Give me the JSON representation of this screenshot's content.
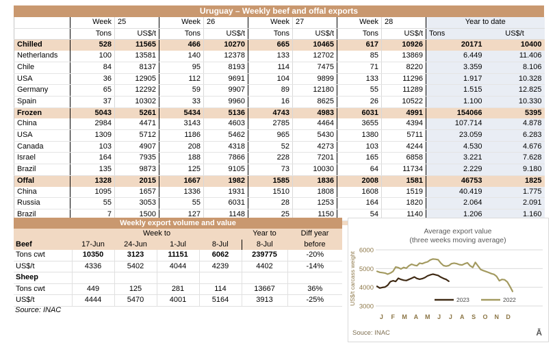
{
  "colors": {
    "header_bg": "#C9986F",
    "section_bg": "#F1D9C3",
    "ytd_bg": "#E9EDF4",
    "line_2023": "#3F2A14",
    "line_2022": "#A39A60"
  },
  "table1": {
    "title": "Uruguay – Weekly beef and offal exports",
    "week_word": "Week",
    "weeks": [
      "25",
      "26",
      "27",
      "28"
    ],
    "ytd_header": "Year to date",
    "tons_label": "Tons",
    "usd_label": "US$/t",
    "sections": [
      {
        "label": "Chilled",
        "values": [
          "528",
          "11565",
          "466",
          "10270",
          "665",
          "10465",
          "617",
          "10926",
          "20171",
          "10400"
        ],
        "rows": [
          {
            "label": "Netherlands",
            "values": [
              "100",
              "13581",
              "140",
              "12378",
              "133",
              "12702",
              "85",
              "13869",
              "6.449",
              "11.406"
            ]
          },
          {
            "label": "Chile",
            "values": [
              "84",
              "8137",
              "95",
              "8193",
              "114",
              "7475",
              "71",
              "8220",
              "3.359",
              "8.106"
            ]
          },
          {
            "label": "USA",
            "values": [
              "36",
              "12905",
              "112",
              "9691",
              "104",
              "9899",
              "133",
              "11296",
              "1.917",
              "10.328"
            ]
          },
          {
            "label": "Germany",
            "values": [
              "65",
              "12292",
              "59",
              "9907",
              "89",
              "12180",
              "55",
              "11289",
              "1.515",
              "12.825"
            ]
          },
          {
            "label": "Spain",
            "values": [
              "37",
              "10302",
              "33",
              "9960",
              "16",
              "8625",
              "26",
              "10522",
              "1.100",
              "10.330"
            ]
          }
        ]
      },
      {
        "label": "Frozen",
        "values": [
          "5043",
          "5261",
          "5434",
          "5136",
          "4743",
          "4983",
          "6031",
          "4991",
          "154066",
          "5395"
        ],
        "rows": [
          {
            "label": "China",
            "values": [
              "2984",
              "4471",
              "3143",
              "4603",
              "2785",
              "4464",
              "3655",
              "4394",
              "107.714",
              "4.878"
            ]
          },
          {
            "label": "USA",
            "values": [
              "1309",
              "5712",
              "1186",
              "5462",
              "965",
              "5430",
              "1380",
              "5711",
              "23.059",
              "6.283"
            ]
          },
          {
            "label": "Canada",
            "values": [
              "103",
              "4907",
              "208",
              "4318",
              "52",
              "4273",
              "103",
              "4244",
              "4.530",
              "4.676"
            ]
          },
          {
            "label": "Israel",
            "values": [
              "164",
              "7935",
              "188",
              "7866",
              "228",
              "7201",
              "165",
              "6858",
              "3.221",
              "7.628"
            ]
          },
          {
            "label": "Brazil",
            "values": [
              "135",
              "9873",
              "125",
              "9105",
              "73",
              "10030",
              "64",
              "11734",
              "2.229",
              "9.180"
            ]
          }
        ]
      },
      {
        "label": "Offal",
        "values": [
          "1328",
          "2015",
          "1667",
          "1982",
          "1585",
          "1836",
          "2008",
          "1581",
          "46753",
          "1825"
        ],
        "rows": [
          {
            "label": "China",
            "values": [
              "1095",
              "1657",
              "1336",
              "1931",
              "1510",
              "1808",
              "1608",
              "1519",
              "40.419",
              "1.775"
            ]
          },
          {
            "label": "Russia",
            "values": [
              "55",
              "3053",
              "55",
              "6031",
              "28",
              "1253",
              "164",
              "1820",
              "2.064",
              "2.091"
            ]
          },
          {
            "label": "Brazil",
            "values": [
              "7",
              "1500",
              "127",
              "1148",
              "25",
              "1150",
              "54",
              "1140",
              "1.206",
              "1.160"
            ]
          }
        ]
      }
    ]
  },
  "table2": {
    "title": "Weekly export volume and value",
    "week_to": "Week to",
    "year_to": "Year to",
    "diff_line1": "Diff year",
    "diff_line2": "before",
    "dates": [
      "17-Jun",
      "24-Jun",
      "1-Jul",
      "8-Jul"
    ],
    "year_date": "8-Jul",
    "sections": [
      {
        "label": "Beef",
        "rows": [
          {
            "label": "Tons cwt",
            "bold": true,
            "values": [
              "10350",
              "3123",
              "11151",
              "6062",
              "239775",
              "-20%"
            ]
          },
          {
            "label": "US$/t",
            "bold": false,
            "values": [
              "4336",
              "5402",
              "4044",
              "4239",
              "4402",
              "-14%"
            ]
          }
        ]
      },
      {
        "label": "Sheep",
        "rows": [
          {
            "label": "Tons cwt",
            "bold": false,
            "values": [
              "449",
              "125",
              "281",
              "114",
              "13667",
              "36%"
            ]
          },
          {
            "label": "US$/t",
            "bold": false,
            "values": [
              "4444",
              "5470",
              "4001",
              "5164",
              "3913",
              "-25%"
            ]
          }
        ]
      }
    ],
    "source": "Source: INAC"
  },
  "chart_data": {
    "type": "line",
    "title": "Average export  value",
    "subtitle": "(three weeks moving average)",
    "ylabel": "US$/t carcass weight",
    "ylim": [
      3000,
      6000
    ],
    "yticks": [
      6000,
      5000,
      4000,
      3000
    ],
    "grid": true,
    "legend_position": "inside-bottom",
    "x_months": [
      "J",
      "F",
      "M",
      "A",
      "M",
      "J",
      "J",
      "A",
      "S",
      "O",
      "N",
      "D"
    ],
    "x_unit": "week",
    "series": [
      {
        "name": "2022",
        "color": "#A39A60",
        "values": [
          4850,
          4800,
          4780,
          4760,
          4700,
          4760,
          4850,
          5080,
          5050,
          4980,
          5060,
          5020,
          5150,
          5230,
          5180,
          5150,
          5290,
          5260,
          5320,
          5360,
          5460,
          5510,
          5500,
          5470,
          5290,
          5160,
          5130,
          5160,
          5260,
          5290,
          5260,
          5210,
          5190,
          5260,
          5310,
          5150,
          5060,
          5330,
          5140,
          4950,
          4890,
          4840,
          4790,
          4730,
          4690,
          4580,
          4350,
          4420,
          4400,
          4290,
          4050,
          3780
        ]
      },
      {
        "name": "2023",
        "color": "#3F2A14",
        "values": [
          4050,
          3960,
          3990,
          4010,
          4110,
          4300,
          4350,
          4310,
          4480,
          4420,
          4380,
          4360,
          4420,
          4480,
          4550,
          4470,
          4430,
          4460,
          4520,
          4610,
          4660,
          4700,
          4670,
          4630,
          4540,
          4470,
          4420,
          4320
        ]
      }
    ],
    "source": "Souce: INAC",
    "logo": "Ā"
  }
}
